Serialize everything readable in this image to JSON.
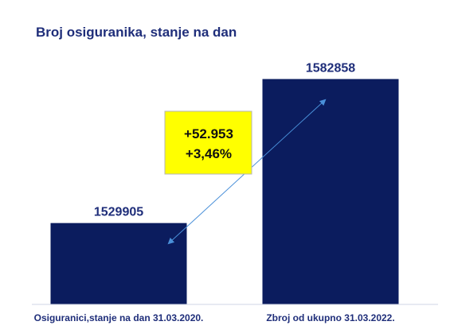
{
  "chart_data": {
    "type": "bar",
    "title": "Broj osiguranika, stanje na dan",
    "categories": [
      "Osiguranici,stanje na dan 31.03.2020.",
      "Zbroj od ukupno 31.03.2022."
    ],
    "values": [
      1529905,
      1582858
    ],
    "value_labels": [
      "1529905",
      "1582858"
    ],
    "ylim": [
      1500000,
      1590000
    ],
    "grid": false,
    "legend": "none",
    "colors": {
      "bar": "#0b1c5e",
      "axis": "#cfd6e6",
      "callout_fill": "#ffff00",
      "arrow": "#4a90d9",
      "text": "#1f2e7a"
    },
    "annotation": {
      "lines": [
        "+52.953",
        "+3,46%"
      ]
    }
  }
}
